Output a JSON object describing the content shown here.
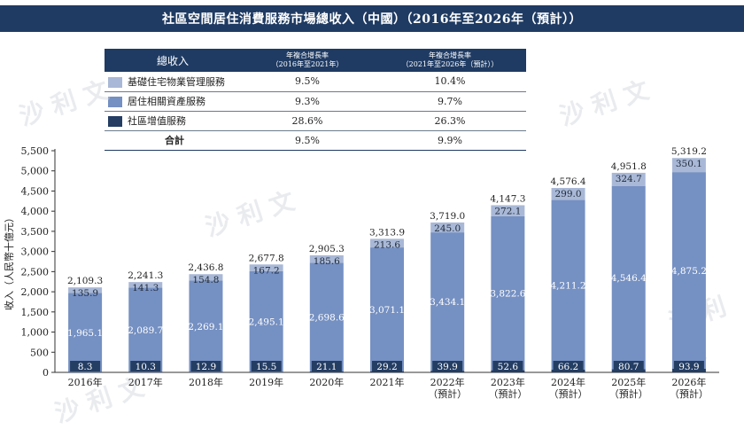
{
  "title": "社區空間居住消費服務市場總收入（中國）（2016年至2026年（預計））",
  "legend_table": {
    "header": {
      "name": "總收入",
      "cagr1": "年複合增長率\n（2016年至2021年）",
      "cagr2": "年複合增長率\n（2021年至2026年（預計））"
    },
    "rows": [
      {
        "name": "基礎住宅物業管理服務",
        "cagr1": "9.5%",
        "cagr2": "10.4%",
        "color": "#a9b8d6"
      },
      {
        "name": "居住相關資產服務",
        "cagr1": "9.3%",
        "cagr2": "9.7%",
        "color": "#7590c2"
      },
      {
        "name": "社區增值服務",
        "cagr1": "28.6%",
        "cagr2": "26.3%",
        "color": "#243d63"
      }
    ],
    "total": {
      "name": "合計",
      "cagr1": "9.5%",
      "cagr2": "9.9%"
    }
  },
  "watermark": "沙 利 文",
  "chart_data": {
    "type": "bar",
    "stacked": true,
    "categories": [
      "2016年",
      "2017年",
      "2018年",
      "2019年",
      "2020年",
      "2021年",
      "2022年\n（預計）",
      "2023年\n（預計）",
      "2024年\n（預計）",
      "2025年\n（預計）",
      "2026年\n（預計）"
    ],
    "series": [
      {
        "name": "社區增值服務",
        "color": "#243d63",
        "values": [
          8.3,
          10.3,
          12.9,
          15.5,
          21.1,
          29.2,
          39.9,
          52.6,
          66.2,
          80.7,
          93.9
        ],
        "labels": [
          "8.3",
          "10.3",
          "12.9",
          "15.5",
          "21.1",
          "29.2",
          "39.9",
          "52.6",
          "66.2",
          "80.7",
          "93.9"
        ]
      },
      {
        "name": "居住相關資產服務",
        "color": "#7590c2",
        "values": [
          1965.1,
          2089.7,
          2269.1,
          2495.1,
          2698.6,
          3071.1,
          3434.1,
          3822.6,
          4211.2,
          4546.4,
          4875.2
        ],
        "labels": [
          "1,965.1",
          "2,089.7",
          "2,269.1",
          "2,495.1",
          "2,698.6",
          "3,071.1",
          "3,434.1",
          "3,822.6",
          "4,211.2",
          "4,546.4",
          "4,875.2"
        ]
      },
      {
        "name": "基礎住宅物業管理服務",
        "color": "#a9b8d6",
        "values": [
          135.9,
          141.3,
          154.8,
          167.2,
          185.6,
          213.6,
          245.0,
          272.1,
          299.0,
          324.7,
          350.1
        ],
        "labels": [
          "135.9",
          "141.3",
          "154.8",
          "167.2",
          "185.6",
          "213.6",
          "245.0",
          "272.1",
          "299.0",
          "324.7",
          "350.1"
        ]
      }
    ],
    "totals": [
      2109.3,
      2241.3,
      2436.8,
      2677.8,
      2905.3,
      3313.9,
      3719.0,
      4147.3,
      4576.4,
      4951.8,
      5319.2
    ],
    "total_labels": [
      "2,109.3",
      "2,241.3",
      "2,436.8",
      "2,677.8",
      "2,905.3",
      "3,313.9",
      "3,719.0",
      "4,147.3",
      "4,576.4",
      "4,951.8",
      "5,319.2"
    ],
    "ylabel": "收入（人民幣十億元）",
    "ylim": [
      0,
      5500
    ],
    "yticks": [
      0,
      500,
      1000,
      1500,
      2000,
      2500,
      3000,
      3500,
      4000,
      4500,
      5000,
      5500
    ],
    "ytick_labels": [
      "0",
      "500",
      "1,000",
      "1,500",
      "2,000",
      "2,500",
      "3,000",
      "3,500",
      "4,000",
      "4,500",
      "5,000",
      "5,500"
    ]
  }
}
